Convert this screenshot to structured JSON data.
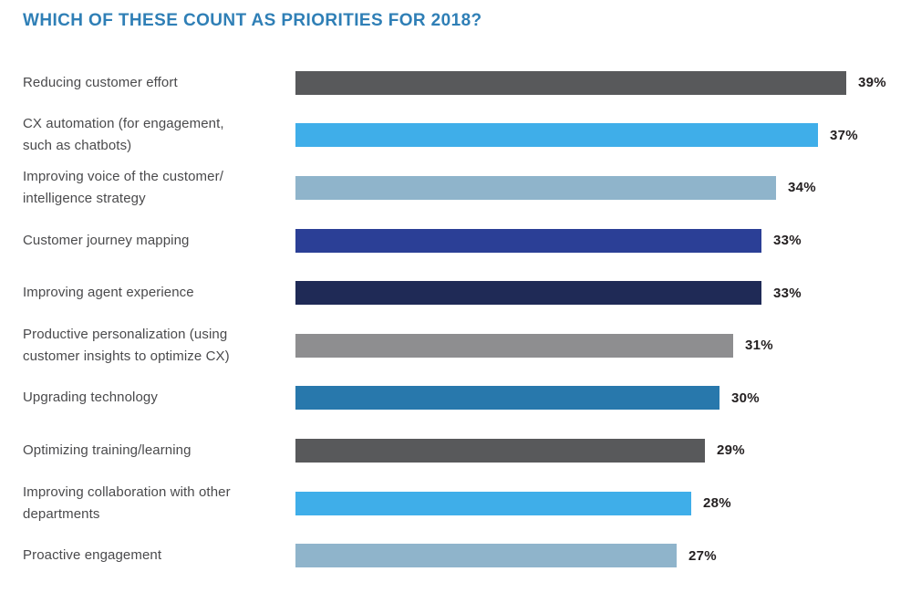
{
  "chart_data": {
    "type": "bar",
    "orientation": "horizontal",
    "title": "WHICH OF THESE COUNT AS PRIORITIES FOR 2018?",
    "title_color": "#2F7FB6",
    "categories": [
      "Reducing customer effort",
      "CX automation (for engagement,\nsuch as chatbots)",
      "Improving voice of the customer/\nintelligence strategy",
      "Customer journey mapping",
      "Improving agent experience",
      "Productive personalization (using\ncustomer insights to optimize CX)",
      "Upgrading technology",
      "Optimizing training/learning",
      "Improving collaboration with other\ndepartments",
      "Proactive engagement"
    ],
    "values": [
      39,
      37,
      34,
      33,
      33,
      31,
      30,
      29,
      28,
      27
    ],
    "value_labels": [
      "39%",
      "37%",
      "34%",
      "33%",
      "33%",
      "31%",
      "30%",
      "29%",
      "28%",
      "27%"
    ],
    "bar_colors": [
      "#58595B",
      "#3FAEE9",
      "#8FB4CB",
      "#2B3F96",
      "#1F2A56",
      "#8E8E90",
      "#2878AC",
      "#58595B",
      "#3FAEE9",
      "#8FB4CB"
    ],
    "xlim": [
      0,
      39
    ],
    "grid": false,
    "legend": false,
    "value_label_position": "end-of-bar",
    "pixels_per_percent": 15.49
  }
}
